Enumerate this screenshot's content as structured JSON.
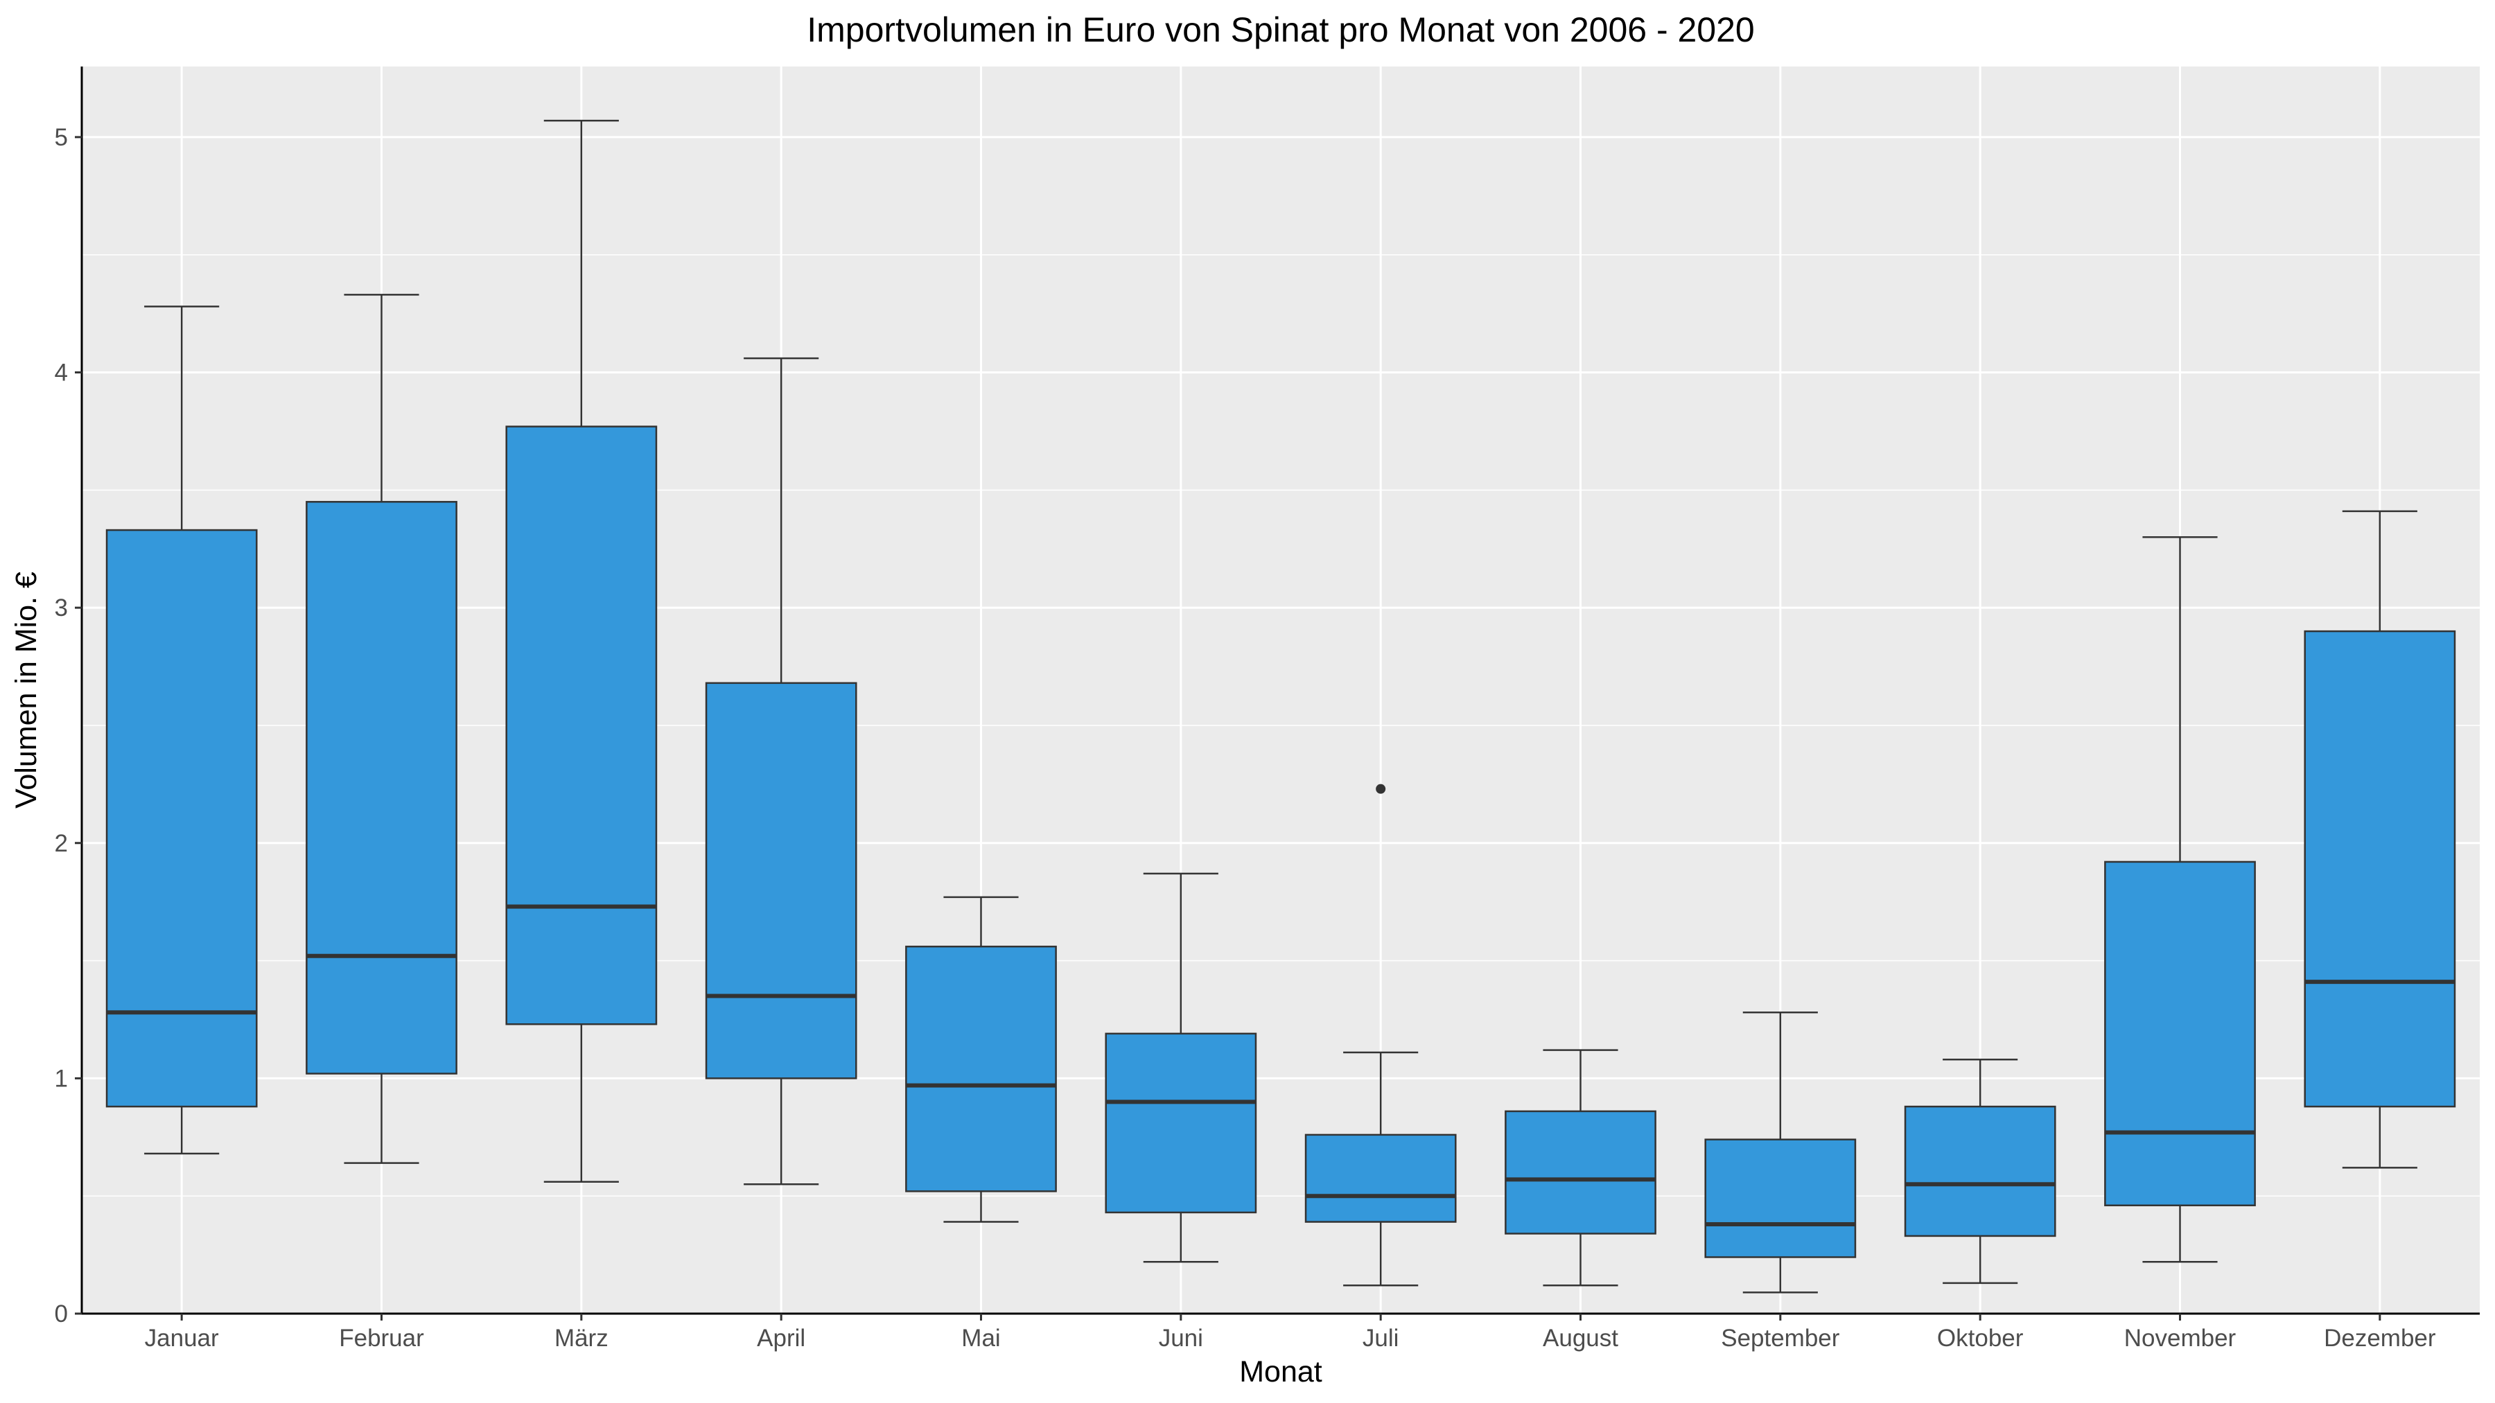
{
  "chart_data": {
    "type": "boxplot",
    "title": "Importvolumen in Euro von Spinat pro Monat von 2006 - 2020",
    "xlabel": "Monat",
    "ylabel": "Volumen in Mio. €",
    "ylim": [
      0,
      5.3
    ],
    "yticks": [
      0,
      1,
      2,
      3,
      4,
      5
    ],
    "grid": true,
    "colors": {
      "box_fill": "#3498DB",
      "box_stroke": "#333333",
      "panel_bg": "#EBEBEB",
      "grid": "#FFFFFF"
    },
    "categories": [
      "Januar",
      "Februar",
      "März",
      "April",
      "Mai",
      "Juni",
      "Juli",
      "August",
      "September",
      "Oktober",
      "November",
      "Dezember"
    ],
    "boxes": [
      {
        "min": 0.68,
        "q1": 0.88,
        "median": 1.28,
        "q3": 3.33,
        "max": 4.28,
        "outliers": []
      },
      {
        "min": 0.64,
        "q1": 1.02,
        "median": 1.52,
        "q3": 3.45,
        "max": 4.33,
        "outliers": []
      },
      {
        "min": 0.56,
        "q1": 1.23,
        "median": 1.73,
        "q3": 3.77,
        "max": 5.07,
        "outliers": []
      },
      {
        "min": 0.55,
        "q1": 1.0,
        "median": 1.35,
        "q3": 2.68,
        "max": 4.06,
        "outliers": []
      },
      {
        "min": 0.39,
        "q1": 0.52,
        "median": 0.97,
        "q3": 1.56,
        "max": 1.77,
        "outliers": []
      },
      {
        "min": 0.22,
        "q1": 0.43,
        "median": 0.9,
        "q3": 1.19,
        "max": 1.87,
        "outliers": []
      },
      {
        "min": 0.12,
        "q1": 0.39,
        "median": 0.5,
        "q3": 0.76,
        "max": 1.11,
        "outliers": [
          2.23
        ]
      },
      {
        "min": 0.12,
        "q1": 0.34,
        "median": 0.57,
        "q3": 0.86,
        "max": 1.12,
        "outliers": []
      },
      {
        "min": 0.09,
        "q1": 0.24,
        "median": 0.38,
        "q3": 0.74,
        "max": 1.28,
        "outliers": []
      },
      {
        "min": 0.13,
        "q1": 0.33,
        "median": 0.55,
        "q3": 0.88,
        "max": 1.08,
        "outliers": []
      },
      {
        "min": 0.22,
        "q1": 0.46,
        "median": 0.77,
        "q3": 1.92,
        "max": 3.3,
        "outliers": []
      },
      {
        "min": 0.62,
        "q1": 0.88,
        "median": 1.41,
        "q3": 2.9,
        "max": 3.41,
        "outliers": []
      }
    ]
  }
}
